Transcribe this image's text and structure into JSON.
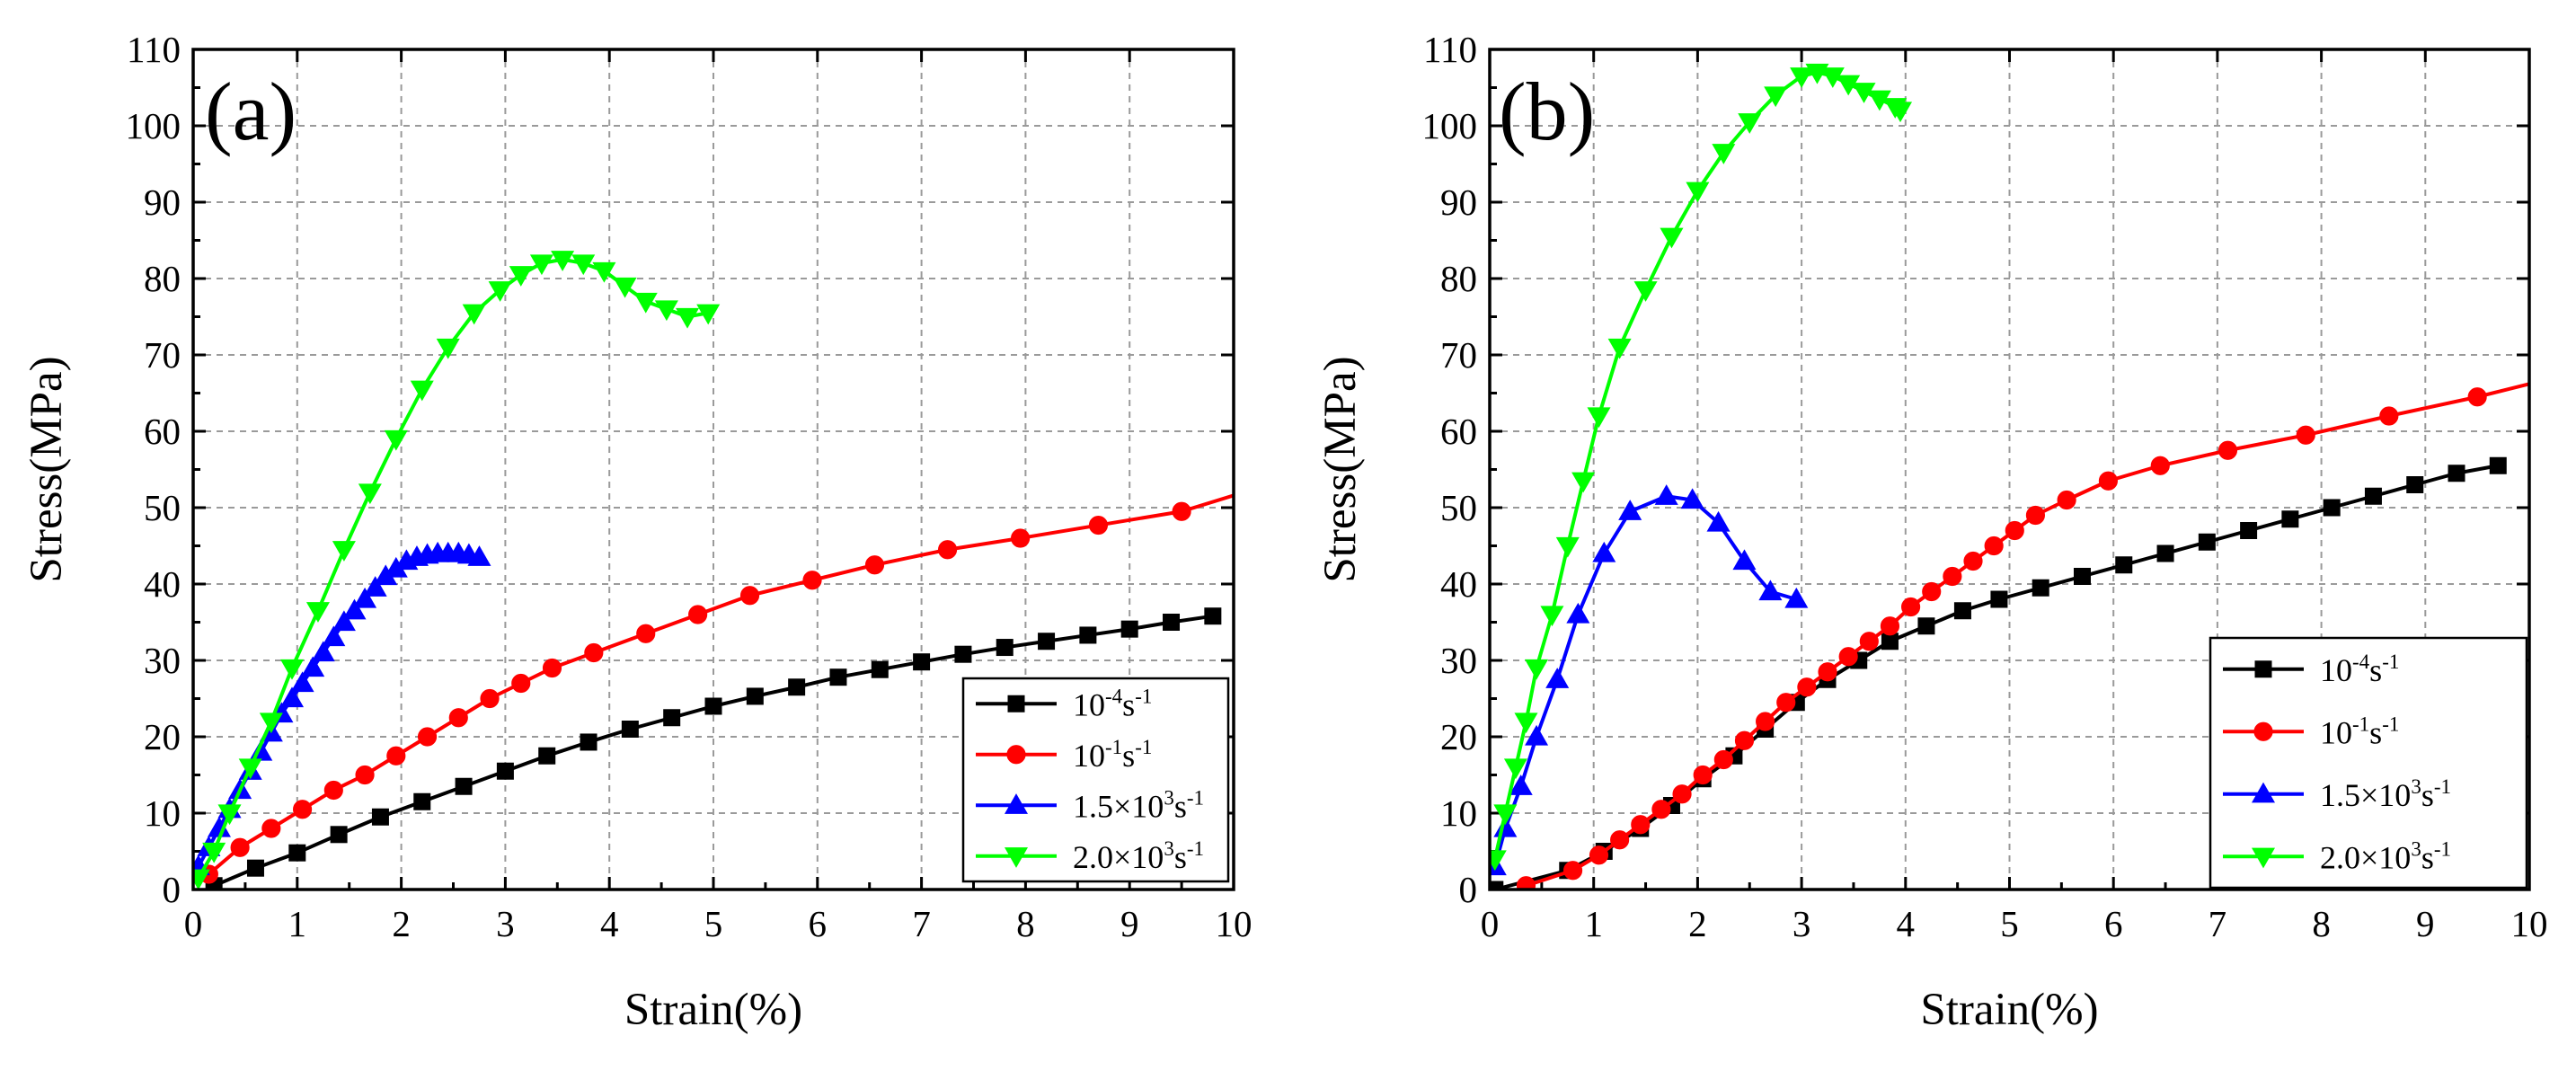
{
  "chart_data": [
    {
      "type": "line",
      "panel_label": "(a)",
      "xlabel": "Strain(%)",
      "ylabel": "Stress(MPa)",
      "xlim": [
        0,
        10
      ],
      "ylim": [
        0,
        110
      ],
      "xticks": [
        0,
        1,
        2,
        3,
        4,
        5,
        6,
        7,
        8,
        9,
        10
      ],
      "yticks": [
        0,
        10,
        20,
        30,
        40,
        50,
        60,
        70,
        80,
        90,
        100,
        110
      ],
      "grid": true,
      "legend_position": "bottom-right",
      "series": [
        {
          "name": "10-4s-1",
          "label_parts": [
            "10",
            "-4",
            "s",
            "-1"
          ],
          "color": "#000000",
          "marker": "square",
          "x": [
            0.2,
            0.6,
            1.0,
            1.4,
            1.8,
            2.2,
            2.6,
            3.0,
            3.4,
            3.8,
            4.2,
            4.6,
            5.0,
            5.4,
            5.8,
            6.2,
            6.6,
            7.0,
            7.4,
            7.8,
            8.2,
            8.6,
            9.0,
            9.4,
            9.8
          ],
          "y": [
            0.5,
            2.8,
            4.8,
            7.2,
            9.5,
            11.5,
            13.5,
            15.5,
            17.5,
            19.3,
            21.0,
            22.5,
            24.0,
            25.3,
            26.5,
            27.8,
            28.8,
            29.8,
            30.8,
            31.7,
            32.5,
            33.3,
            34.1,
            35.0,
            35.8
          ]
        },
        {
          "name": "10-1s-1",
          "label_parts": [
            "10",
            "-1",
            "s",
            "-1"
          ],
          "color": "#ff0000",
          "marker": "circle",
          "x": [
            0.15,
            0.45,
            0.75,
            1.05,
            1.35,
            1.65,
            1.95,
            2.25,
            2.55,
            2.85,
            3.15,
            3.45,
            3.85,
            4.35,
            4.85,
            5.35,
            5.95,
            6.55,
            7.25,
            7.95,
            8.7,
            9.5
          ],
          "y": [
            2.0,
            5.5,
            8.0,
            10.5,
            13.0,
            15.0,
            17.5,
            20.0,
            22.5,
            25.0,
            27.0,
            29.0,
            31.0,
            33.5,
            36.0,
            38.5,
            40.5,
            42.5,
            44.5,
            46.0,
            47.7,
            49.5
          ],
          "line_end": [
            10.0,
            51.6
          ]
        },
        {
          "name": "1.5×103s-1",
          "label_parts": [
            "1.5×10",
            "3",
            "s",
            "-1"
          ],
          "color": "#0000ff",
          "marker": "triangle-up",
          "x": [
            0.05,
            0.15,
            0.25,
            0.35,
            0.45,
            0.55,
            0.65,
            0.75,
            0.85,
            0.95,
            1.05,
            1.15,
            1.25,
            1.35,
            1.45,
            1.55,
            1.65,
            1.75,
            1.85,
            1.95,
            2.05,
            2.15,
            2.25,
            2.35,
            2.45,
            2.55,
            2.65,
            2.75
          ],
          "y": [
            3.0,
            5.5,
            8.0,
            10.5,
            13.0,
            15.5,
            18.0,
            20.5,
            23.0,
            25.0,
            27.0,
            29.0,
            31.0,
            33.0,
            35.0,
            36.5,
            38.0,
            39.5,
            41.0,
            42.0,
            43.0,
            43.5,
            43.8,
            44.0,
            44.0,
            44.0,
            43.8,
            43.5
          ]
        },
        {
          "name": "2.0×103s-1",
          "label_parts": [
            "2.0×10",
            "3",
            "s",
            "-1"
          ],
          "color": "#00ff00",
          "marker": "triangle-down",
          "x": [
            0.05,
            0.2,
            0.35,
            0.55,
            0.75,
            0.95,
            1.2,
            1.45,
            1.7,
            1.95,
            2.2,
            2.45,
            2.7,
            2.95,
            3.15,
            3.35,
            3.55,
            3.75,
            3.95,
            4.15,
            4.35,
            4.55,
            4.75,
            4.95
          ],
          "y": [
            1.5,
            5.0,
            10.0,
            16.0,
            22.0,
            29.0,
            36.5,
            44.5,
            52.0,
            59.0,
            65.5,
            71.0,
            75.5,
            78.5,
            80.5,
            82.0,
            82.5,
            82.0,
            81.0,
            79.0,
            77.0,
            76.0,
            75.0,
            75.5
          ]
        }
      ]
    },
    {
      "type": "line",
      "panel_label": "(b)",
      "xlabel": "Strain(%)",
      "ylabel": "Stress(MPa)",
      "xlim": [
        0,
        10
      ],
      "ylim": [
        0,
        110
      ],
      "xticks": [
        0,
        1,
        2,
        3,
        4,
        5,
        6,
        7,
        8,
        9,
        10
      ],
      "yticks": [
        0,
        10,
        20,
        30,
        40,
        50,
        60,
        70,
        80,
        90,
        100,
        110
      ],
      "grid": true,
      "legend_position": "bottom-right",
      "series": [
        {
          "name": "10-4s-1",
          "label_parts": [
            "10",
            "-4",
            "s",
            "-1"
          ],
          "color": "#000000",
          "marker": "square",
          "x": [
            0.05,
            0.75,
            1.1,
            1.45,
            1.75,
            2.05,
            2.35,
            2.65,
            2.95,
            3.25,
            3.55,
            3.85,
            4.2,
            4.55,
            4.9,
            5.3,
            5.7,
            6.1,
            6.5,
            6.9,
            7.3,
            7.7,
            8.1,
            8.5,
            8.9,
            9.3,
            9.7
          ],
          "y": [
            0.0,
            2.5,
            5.0,
            8.0,
            11.0,
            14.5,
            17.5,
            21.0,
            24.5,
            27.5,
            30.0,
            32.5,
            34.5,
            36.5,
            38.0,
            39.5,
            41.0,
            42.5,
            44.0,
            45.5,
            47.0,
            48.5,
            50.0,
            51.5,
            53.0,
            54.5,
            55.5
          ]
        },
        {
          "name": "10-1s-1",
          "label_parts": [
            "10",
            "-1",
            "s",
            "-1"
          ],
          "color": "#ff0000",
          "marker": "circle",
          "x": [
            0.35,
            0.8,
            1.05,
            1.25,
            1.45,
            1.65,
            1.85,
            2.05,
            2.25,
            2.45,
            2.65,
            2.85,
            3.05,
            3.25,
            3.45,
            3.65,
            3.85,
            4.05,
            4.25,
            4.45,
            4.65,
            4.85,
            5.05,
            5.25,
            5.55,
            5.95,
            6.45,
            7.1,
            7.85,
            8.65,
            9.5
          ],
          "y": [
            0.5,
            2.5,
            4.5,
            6.5,
            8.5,
            10.5,
            12.5,
            15.0,
            17.0,
            19.5,
            22.0,
            24.5,
            26.5,
            28.5,
            30.5,
            32.5,
            34.5,
            37.0,
            39.0,
            41.0,
            43.0,
            45.0,
            47.0,
            49.0,
            51.0,
            53.5,
            55.5,
            57.5,
            59.5,
            62.0,
            64.5
          ],
          "line_end": [
            10.0,
            66.2
          ]
        },
        {
          "name": "1.5×103s-1",
          "label_parts": [
            "1.5×10",
            "3",
            "s",
            "-1"
          ],
          "color": "#0000ff",
          "marker": "triangle-up",
          "x": [
            0.05,
            0.15,
            0.3,
            0.45,
            0.65,
            0.85,
            1.1,
            1.35,
            1.7,
            1.95,
            2.2,
            2.45,
            2.7,
            2.95
          ],
          "y": [
            3.0,
            8.0,
            13.5,
            20.0,
            27.5,
            36.0,
            44.0,
            49.5,
            51.5,
            51.0,
            48.0,
            43.0,
            39.0,
            38.0
          ]
        },
        {
          "name": "2.0×103s-1",
          "label_parts": [
            "2.0×10",
            "3",
            "s",
            "-1"
          ],
          "color": "#00ff00",
          "marker": "triangle-down",
          "x": [
            0.05,
            0.15,
            0.25,
            0.35,
            0.45,
            0.6,
            0.75,
            0.9,
            1.05,
            1.25,
            1.5,
            1.75,
            2.0,
            2.25,
            2.5,
            2.75,
            3.0,
            3.15,
            3.3,
            3.45,
            3.6,
            3.75,
            3.9,
            3.95
          ],
          "y": [
            4.0,
            10.0,
            16.0,
            22.0,
            29.0,
            36.0,
            45.0,
            53.5,
            62.0,
            71.0,
            78.5,
            85.5,
            91.5,
            96.5,
            100.5,
            104.0,
            106.5,
            107.0,
            106.5,
            105.5,
            104.5,
            103.5,
            102.5,
            102.0
          ]
        }
      ]
    }
  ]
}
